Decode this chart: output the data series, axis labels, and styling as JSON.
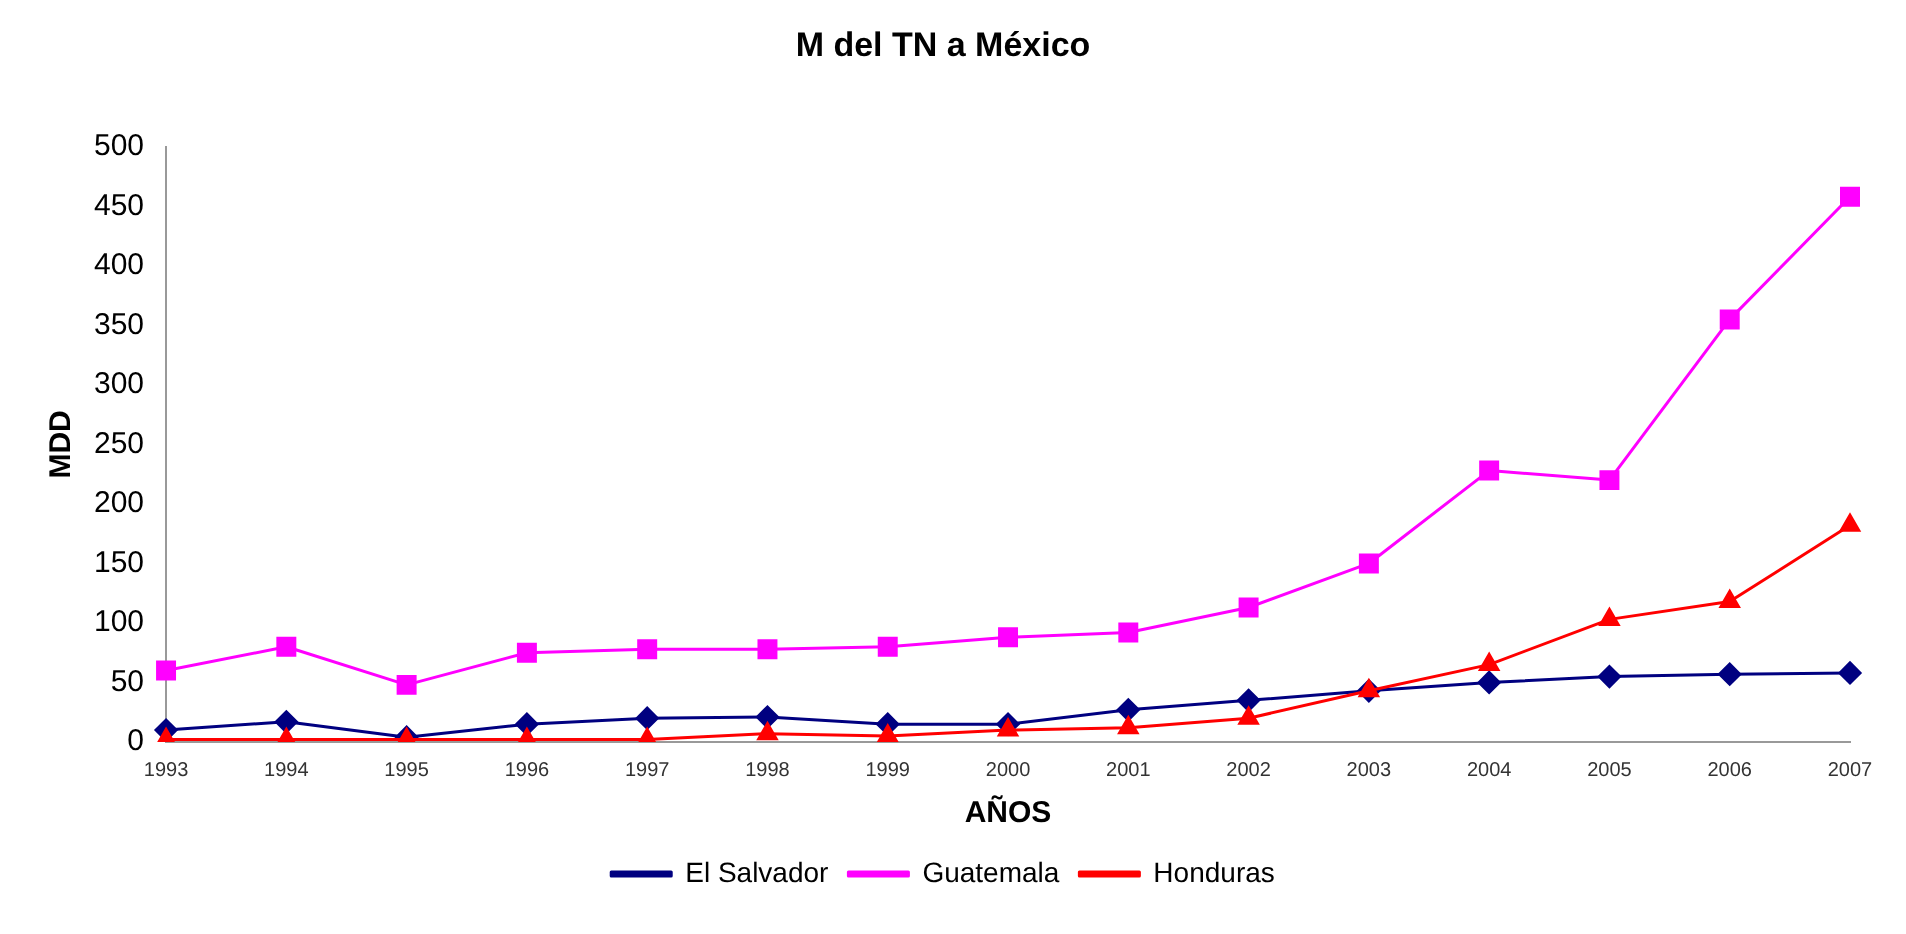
{
  "chart_data": {
    "type": "line",
    "title": "M del TN a México",
    "xlabel": "AÑOS",
    "ylabel": "MDD",
    "categories": [
      "1993",
      "1994",
      "1995",
      "1996",
      "1997",
      "1998",
      "1999",
      "2000",
      "2001",
      "2002",
      "2003",
      "2004",
      "2005",
      "2006",
      "2007"
    ],
    "series": [
      {
        "name": "El Salvador",
        "color": "#000080",
        "marker": "diamond",
        "values": [
          10,
          17,
          4,
          15,
          20,
          21,
          15,
          15,
          27,
          35,
          43,
          50,
          55,
          57,
          58
        ]
      },
      {
        "name": "Guatemala",
        "color": "#ff00ff",
        "marker": "square",
        "values": [
          60,
          80,
          48,
          75,
          78,
          78,
          80,
          88,
          92,
          113,
          150,
          228,
          220,
          355,
          458
        ]
      },
      {
        "name": "Honduras",
        "color": "#ff0000",
        "marker": "triangle",
        "values": [
          2,
          2,
          2,
          2,
          2,
          7,
          5,
          10,
          12,
          20,
          43,
          65,
          103,
          118,
          182
        ]
      }
    ],
    "ylim": [
      0,
      500
    ],
    "yticks": [
      0,
      50,
      100,
      150,
      200,
      250,
      300,
      350,
      400,
      450,
      500
    ],
    "grid": false,
    "legend": "bottom"
  }
}
